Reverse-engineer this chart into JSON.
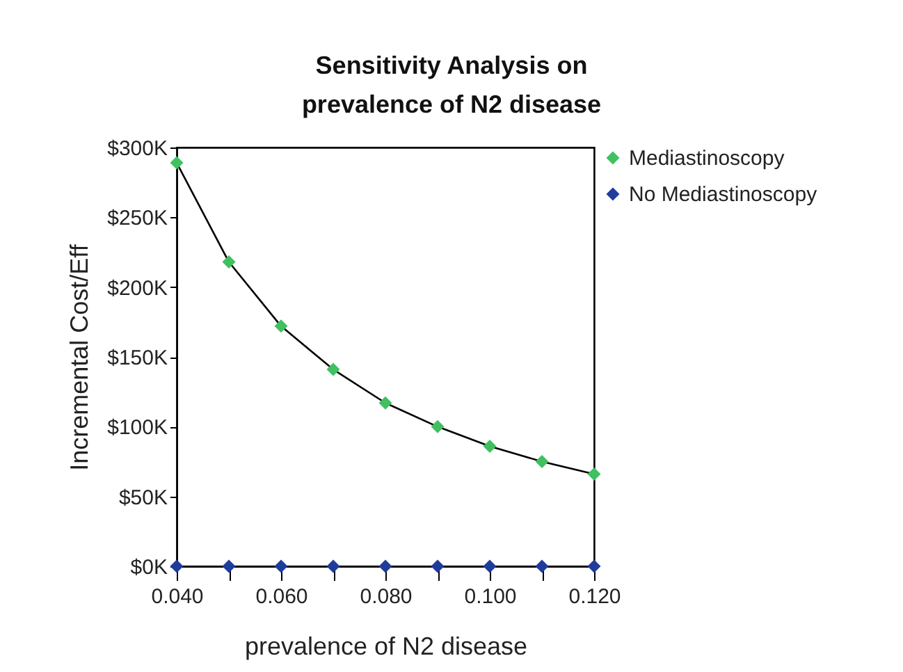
{
  "chart_data": {
    "type": "scatter",
    "title": "Sensitivity Analysis on prevalence of N2 disease",
    "xlabel": "prevalence of N2 disease",
    "ylabel": "Incremental Cost/Eff",
    "x": [
      0.04,
      0.05,
      0.06,
      0.07,
      0.08,
      0.09,
      0.1,
      0.11,
      0.12
    ],
    "series": [
      {
        "type": "line",
        "color": "#000000",
        "marker": "none",
        "values": [
          289,
          218,
          172,
          141,
          117,
          100,
          86,
          75,
          66
        ]
      },
      {
        "name": "Mediastinoscopy",
        "color": "#40c060",
        "values": [
          289,
          218,
          172,
          141,
          117,
          100,
          86,
          75,
          66
        ]
      },
      {
        "name": "No Mediastinoscopy",
        "color": "#1f3c9c",
        "values": [
          0,
          0,
          0,
          0,
          0,
          0,
          0,
          0,
          0
        ]
      }
    ],
    "xlim": [
      0.04,
      0.12
    ],
    "xticks": [
      {
        "value": 0.04,
        "label": "0.040"
      },
      {
        "value": 0.05,
        "label": null
      },
      {
        "value": 0.06,
        "label": "0.060"
      },
      {
        "value": 0.07,
        "label": null
      },
      {
        "value": 0.08,
        "label": "0.080"
      },
      {
        "value": 0.09,
        "label": null
      },
      {
        "value": 0.1,
        "label": "0.100"
      },
      {
        "value": 0.11,
        "label": null
      },
      {
        "value": 0.12,
        "label": "0.120"
      }
    ],
    "ylim": [
      0,
      300
    ],
    "yticks": [
      {
        "value": 0,
        "label": "$0K"
      },
      {
        "value": 50,
        "label": "$50K"
      },
      {
        "value": 100,
        "label": "$100K"
      },
      {
        "value": 150,
        "label": "$150K"
      },
      {
        "value": 200,
        "label": "$200K"
      },
      {
        "value": 250,
        "label": "$250K"
      },
      {
        "value": 300,
        "label": "$300K"
      }
    ],
    "grid": false,
    "legend": "right",
    "marker": "diamond"
  }
}
